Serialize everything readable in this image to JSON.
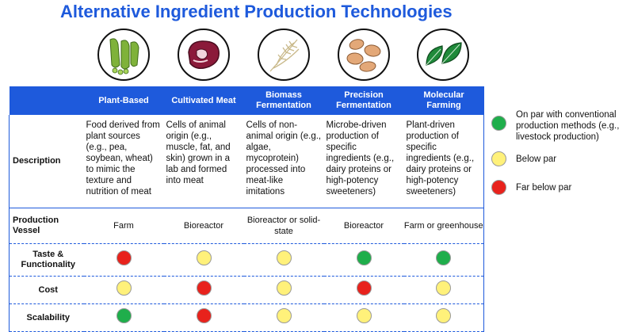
{
  "title": "Alternative Ingredient Production Technologies",
  "colors": {
    "accent": "#1e5adc",
    "green": "#1fae4b",
    "yellow": "#fff17a",
    "red": "#e8221c"
  },
  "icons": [
    "peas-icon",
    "steak-icon",
    "wheat-icon",
    "potatoes-icon",
    "leaves-icon"
  ],
  "columns": [
    {
      "label": "Plant-Based"
    },
    {
      "label": "Cultivated Meat"
    },
    {
      "label": "Biomass Fermentation"
    },
    {
      "label": "Precision Fermentation"
    },
    {
      "label": "Molecular Farming"
    }
  ],
  "rows": {
    "description": {
      "label": "Description",
      "values": [
        "Food derived from plant sources (e.g., pea, soybean, wheat) to mimic the texture and nutrition of meat",
        "Cells of animal origin (e.g., muscle, fat, and skin) grown in a lab and formed into meat",
        "Cells of non-animal origin (e.g., algae, mycoprotein) processed into meat-like imitations",
        "Microbe-driven production of specific ingredients (e.g., dairy proteins or high-potency sweeteners)",
        "Plant-driven production of specific ingredients (e.g., dairy proteins or high-potency sweeteners)"
      ]
    },
    "vessel": {
      "label": "Production Vessel",
      "values": [
        "Farm",
        "Bioreactor",
        "Bioreactor or solid-state",
        "Bioreactor",
        "Farm or greenhouse"
      ]
    },
    "taste": {
      "label": "Taste & Functionality",
      "ratings": [
        "red",
        "yellow",
        "yellow",
        "green",
        "green"
      ]
    },
    "cost": {
      "label": "Cost",
      "ratings": [
        "yellow",
        "red",
        "yellow",
        "red",
        "yellow"
      ]
    },
    "scalability": {
      "label": "Scalability",
      "ratings": [
        "green",
        "red",
        "yellow",
        "yellow",
        "yellow"
      ]
    }
  },
  "legend": [
    {
      "color": "green",
      "text": "On par with conventional production methods (e.g., livestock production)"
    },
    {
      "color": "yellow",
      "text": "Below par"
    },
    {
      "color": "red",
      "text": "Far below par"
    }
  ]
}
